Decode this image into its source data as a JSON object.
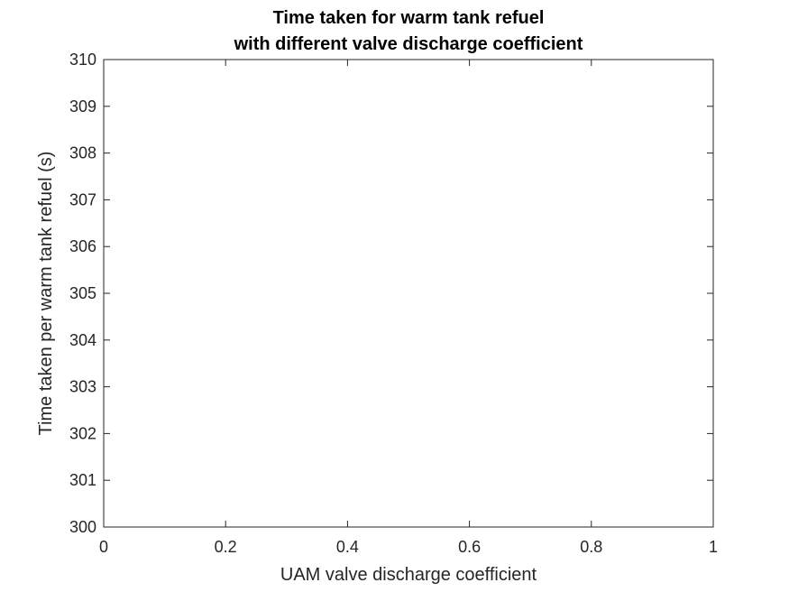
{
  "chart_data": {
    "type": "line",
    "title": [
      "Time taken for warm tank refuel",
      "with different valve discharge coefficient"
    ],
    "xlabel": "UAM valve discharge coefficient",
    "ylabel": "Time taken per warm tank refuel (s)",
    "xlim": [
      0,
      1
    ],
    "ylim": [
      300,
      310
    ],
    "xticks": [
      "0",
      "0.2",
      "0.4",
      "0.6",
      "0.8",
      "1"
    ],
    "yticks": [
      "300",
      "301",
      "302",
      "303",
      "304",
      "305",
      "306",
      "307",
      "308",
      "309",
      "310"
    ],
    "series": [],
    "grid": false,
    "legend": "none",
    "colors": {
      "axis": "#262626",
      "background": "#ffffff"
    }
  }
}
